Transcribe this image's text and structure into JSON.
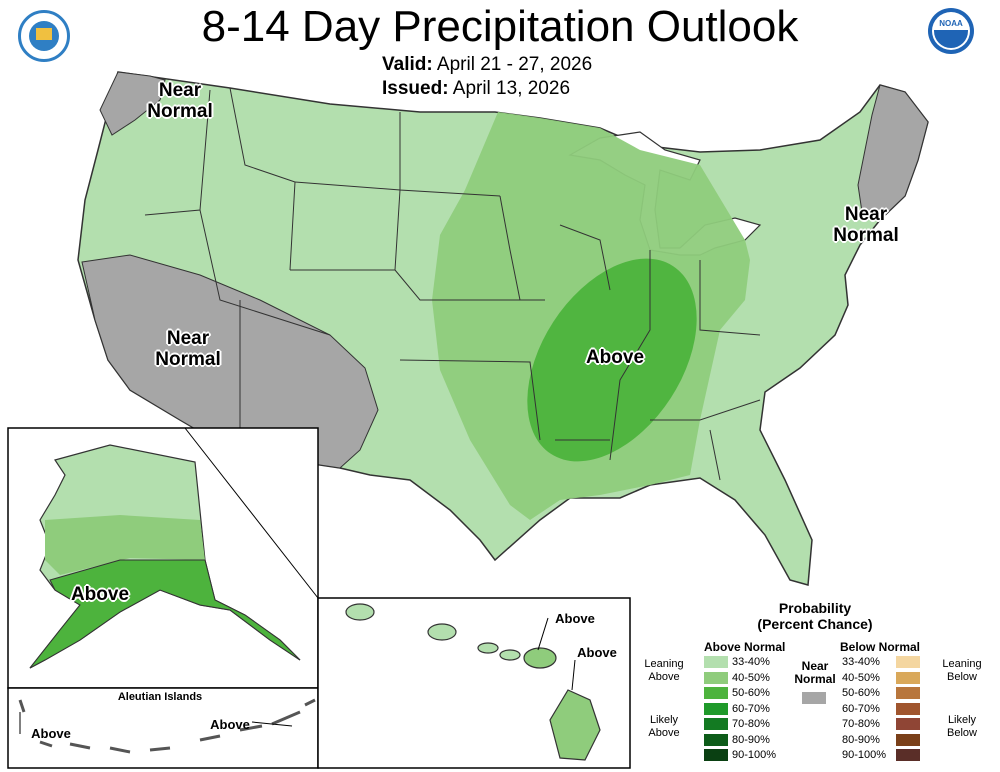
{
  "header": {
    "title": "8-14 Day Precipitation Outlook",
    "valid_label": "Valid:",
    "valid_value": "April 21 - 27, 2026",
    "issued_label": "Issued:",
    "issued_value": "April 13, 2026"
  },
  "logos": {
    "left": "department-of-commerce-seal",
    "right": "noaa-logo",
    "noaa_text": "NOAA"
  },
  "map_labels": {
    "nw_near_normal": "Near Normal",
    "sw_near_normal": "Near Normal",
    "ne_near_normal": "Near Normal",
    "central_above": "Above",
    "alaska_above": "Above",
    "aleutian_title": "Aleutian Islands",
    "aleutian_above_left": "Above",
    "aleutian_above_right": "Above",
    "hawaii_above_1": "Above",
    "hawaii_above_2": "Above"
  },
  "legend": {
    "title_line1": "Probability",
    "title_line2": "(Percent Chance)",
    "above_head": "Above Normal",
    "below_head": "Below Normal",
    "near_normal_line1": "Near",
    "near_normal_line2": "Normal",
    "leaning_above": "Leaning Above",
    "likely_above": "Likely Above",
    "leaning_below": "Leaning Below",
    "likely_below": "Likely Below",
    "near_color": "#a6a6a6",
    "above": [
      {
        "range": "33-40%",
        "color": "#b3dfae"
      },
      {
        "range": "40-50%",
        "color": "#8fcc7c"
      },
      {
        "range": "50-60%",
        "color": "#4db33d"
      },
      {
        "range": "60-70%",
        "color": "#1f9a2a"
      },
      {
        "range": "70-80%",
        "color": "#137a22"
      },
      {
        "range": "80-90%",
        "color": "#0d5c19"
      },
      {
        "range": "90-100%",
        "color": "#0a4012"
      }
    ],
    "below": [
      {
        "range": "33-40%",
        "color": "#f4d6a0"
      },
      {
        "range": "40-50%",
        "color": "#d9a85a"
      },
      {
        "range": "50-60%",
        "color": "#b8763c"
      },
      {
        "range": "60-70%",
        "color": "#a0552e"
      },
      {
        "range": "70-80%",
        "color": "#8f4535"
      },
      {
        "range": "80-90%",
        "color": "#7a4019"
      },
      {
        "range": "90-100%",
        "color": "#5a2e28"
      }
    ]
  }
}
